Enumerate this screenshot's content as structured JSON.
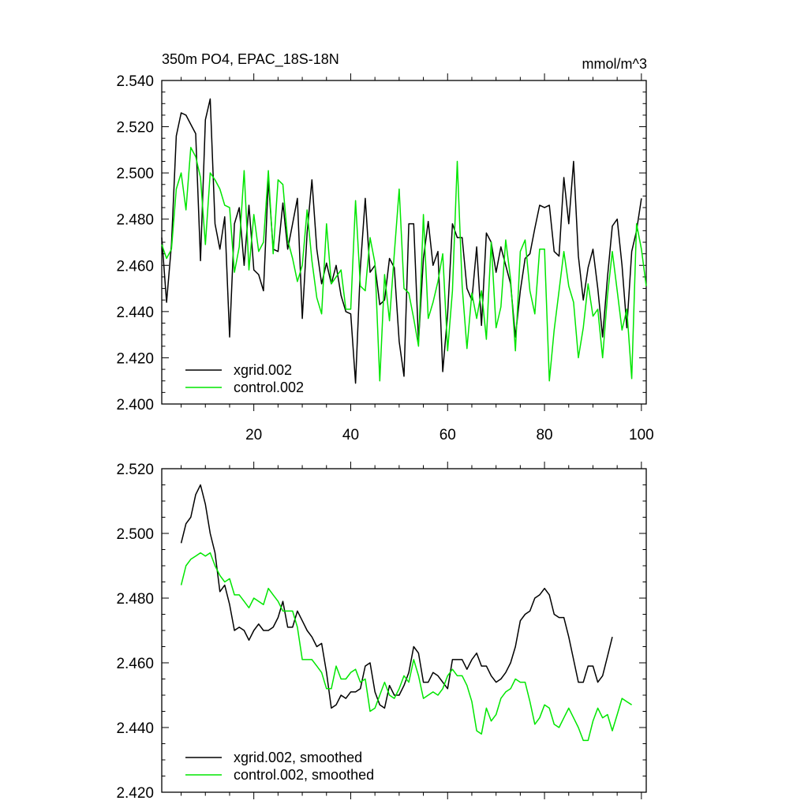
{
  "chart_data": [
    {
      "type": "line",
      "title": "350m PO4, EPAC_18S-18N",
      "units": "mmol/m^3",
      "xlabel": "",
      "ylabel": "",
      "xlim": [
        1,
        101
      ],
      "ylim": [
        2.4,
        2.54
      ],
      "x_ticks": [
        20,
        40,
        60,
        80,
        100
      ],
      "y_ticks": [
        "2.400",
        "2.420",
        "2.440",
        "2.460",
        "2.480",
        "2.500",
        "2.520",
        "2.540"
      ],
      "x_tick_labels_shown": true,
      "grid": false,
      "legend": "bottom-left",
      "x_start": 1,
      "series": [
        {
          "name": "xgrid.002",
          "color": "#000000",
          "values": [
            2.472,
            2.444,
            2.469,
            2.516,
            2.526,
            2.525,
            2.521,
            2.517,
            2.462,
            2.523,
            2.532,
            2.478,
            2.467,
            2.481,
            2.429,
            2.478,
            2.485,
            2.46,
            2.486,
            2.458,
            2.456,
            2.449,
            2.497,
            2.467,
            2.466,
            2.487,
            2.467,
            2.478,
            2.489,
            2.437,
            2.474,
            2.497,
            2.467,
            2.452,
            2.461,
            2.452,
            2.46,
            2.447,
            2.44,
            2.439,
            2.409,
            2.459,
            2.489,
            2.457,
            2.46,
            2.443,
            2.445,
            2.463,
            2.459,
            2.427,
            2.412,
            2.478,
            2.478,
            2.427,
            2.463,
            2.479,
            2.46,
            2.466,
            2.414,
            2.439,
            2.478,
            2.472,
            2.472,
            2.45,
            2.445,
            2.468,
            2.434,
            2.474,
            2.47,
            2.457,
            2.468,
            2.46,
            2.452,
            2.429,
            2.449,
            2.463,
            2.465,
            2.476,
            2.486,
            2.485,
            2.486,
            2.466,
            2.464,
            2.498,
            2.478,
            2.505,
            2.464,
            2.445,
            2.459,
            2.467,
            2.45,
            2.429,
            2.455,
            2.477,
            2.48,
            2.46,
            2.433,
            2.466,
            2.475,
            2.489
          ]
        },
        {
          "name": "control.002",
          "color": "#00e600",
          "values": [
            2.469,
            2.463,
            2.467,
            2.493,
            2.5,
            2.484,
            2.511,
            2.507,
            2.498,
            2.469,
            2.5,
            2.497,
            2.493,
            2.486,
            2.485,
            2.457,
            2.468,
            2.501,
            2.458,
            2.482,
            2.466,
            2.47,
            2.501,
            2.465,
            2.497,
            2.495,
            2.471,
            2.463,
            2.453,
            2.46,
            2.484,
            2.462,
            2.446,
            2.439,
            2.478,
            2.452,
            2.455,
            2.458,
            2.441,
            2.441,
            2.488,
            2.451,
            2.449,
            2.472,
            2.461,
            2.41,
            2.456,
            2.436,
            2.465,
            2.493,
            2.45,
            2.448,
            2.437,
            2.425,
            2.482,
            2.437,
            2.444,
            2.453,
            2.465,
            2.423,
            2.449,
            2.505,
            2.451,
            2.424,
            2.448,
            2.437,
            2.449,
            2.428,
            2.47,
            2.433,
            2.442,
            2.471,
            2.454,
            2.423,
            2.466,
            2.471,
            2.449,
            2.439,
            2.467,
            2.467,
            2.41,
            2.432,
            2.449,
            2.466,
            2.451,
            2.444,
            2.42,
            2.433,
            2.452,
            2.438,
            2.441,
            2.42,
            2.447,
            2.466,
            2.449,
            2.432,
            2.441,
            2.411,
            2.478,
            2.467,
            2.451
          ]
        }
      ]
    },
    {
      "type": "line",
      "title": "",
      "xlabel": "",
      "ylabel": "",
      "xlim": [
        1,
        101
      ],
      "ylim": [
        2.42,
        2.52
      ],
      "x_ticks": [
        20,
        40,
        60,
        80,
        100
      ],
      "y_ticks": [
        "2.420",
        "2.440",
        "2.460",
        "2.480",
        "2.500",
        "2.520"
      ],
      "x_tick_labels_shown": false,
      "grid": false,
      "legend": "bottom-left",
      "x_start": 5,
      "series": [
        {
          "name": "xgrid.002, smoothed",
          "color": "#000000",
          "values": [
            2.497,
            2.503,
            2.505,
            2.512,
            2.515,
            2.509,
            2.5,
            2.494,
            2.482,
            2.484,
            2.478,
            2.47,
            2.471,
            2.47,
            2.467,
            2.47,
            2.472,
            2.47,
            2.47,
            2.471,
            2.474,
            2.479,
            2.471,
            2.471,
            2.476,
            2.473,
            2.47,
            2.468,
            2.465,
            2.466,
            2.457,
            2.446,
            2.447,
            2.45,
            2.449,
            2.451,
            2.451,
            2.452,
            2.459,
            2.46,
            2.451,
            2.447,
            2.446,
            2.453,
            2.45,
            2.45,
            2.453,
            2.457,
            2.465,
            2.463,
            2.454,
            2.454,
            2.457,
            2.456,
            2.454,
            2.452,
            2.461,
            2.461,
            2.461,
            2.458,
            2.461,
            2.463,
            2.459,
            2.459,
            2.456,
            2.454,
            2.455,
            2.457,
            2.46,
            2.465,
            2.473,
            2.475,
            2.476,
            2.48,
            2.481,
            2.483,
            2.481,
            2.475,
            2.474,
            2.474,
            2.468,
            2.461,
            2.454,
            2.454,
            2.459,
            2.459,
            2.454,
            2.456,
            2.462,
            2.468
          ]
        },
        {
          "name": "control.002, smoothed",
          "color": "#00e600",
          "values": [
            2.484,
            2.49,
            2.492,
            2.493,
            2.494,
            2.493,
            2.494,
            2.49,
            2.487,
            2.485,
            2.486,
            2.481,
            2.481,
            2.479,
            2.477,
            2.48,
            2.479,
            2.478,
            2.483,
            2.481,
            2.479,
            2.476,
            2.476,
            2.476,
            2.471,
            2.461,
            2.461,
            2.461,
            2.459,
            2.457,
            2.452,
            2.452,
            2.459,
            2.455,
            2.455,
            2.457,
            2.458,
            2.454,
            2.455,
            2.445,
            2.446,
            2.45,
            2.454,
            2.45,
            2.449,
            2.452,
            2.456,
            2.454,
            2.461,
            2.456,
            2.449,
            2.45,
            2.451,
            2.45,
            2.452,
            2.456,
            2.458,
            2.456,
            2.456,
            2.453,
            2.448,
            2.439,
            2.438,
            2.446,
            2.442,
            2.444,
            2.449,
            2.451,
            2.452,
            2.455,
            2.454,
            2.454,
            2.448,
            2.441,
            2.443,
            2.447,
            2.446,
            2.441,
            2.44,
            2.443,
            2.446,
            2.443,
            2.44,
            2.436,
            2.436,
            2.442,
            2.446,
            2.443,
            2.444,
            2.439,
            2.444,
            2.449,
            2.448,
            2.447
          ]
        }
      ]
    }
  ]
}
